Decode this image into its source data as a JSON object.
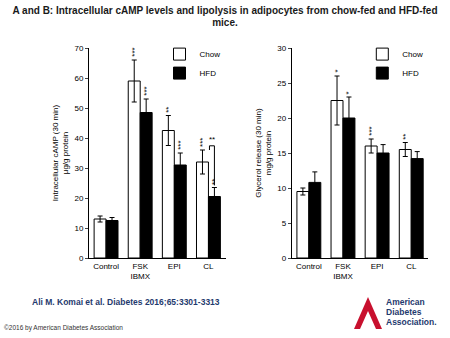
{
  "slide": {
    "title": "A and B: Intracellular cAMP levels and lipolysis in adipocytes from chow-fed and HFD-fed mice.",
    "citation": "Ali M. Komai et al. Diabetes 2016;65:3301-3313",
    "copyright": "©2016 by American Diabetes Association",
    "logo": [
      "American",
      "Diabetes",
      "Association."
    ]
  },
  "chart_data": [
    {
      "type": "bar",
      "panel": "A",
      "y_label": "Intracellular cAMP (30 min)\nμg/g protein",
      "categories": [
        "Control",
        "FSK\nIBMX",
        "EPI",
        "CL"
      ],
      "series": [
        {
          "name": "Chow",
          "color": "#ffffff",
          "values": [
            13,
            59,
            42.5,
            32
          ],
          "errors": [
            1,
            7,
            5,
            4
          ],
          "significance": [
            null,
            "***",
            "**",
            "***"
          ]
        },
        {
          "name": "HFD",
          "color": "#000000",
          "values": [
            12.5,
            48.5,
            31,
            20.5
          ],
          "errors": [
            1,
            4.5,
            4,
            3
          ],
          "significance": [
            null,
            "***",
            "***",
            "**"
          ]
        }
      ],
      "comparisons": [
        {
          "category": "CL",
          "text": "**"
        }
      ],
      "ylim": [
        0,
        70
      ],
      "yticks": [
        0,
        10,
        20,
        30,
        40,
        50,
        60,
        70
      ],
      "grid": false,
      "legend": "top right"
    },
    {
      "type": "bar",
      "panel": "B",
      "y_label": "Glycerol release (30 min)\nmg/g protein",
      "categories": [
        "Control",
        "FSK\nIBMX",
        "EPI",
        "CL"
      ],
      "series": [
        {
          "name": "Chow",
          "color": "#ffffff",
          "values": [
            9.5,
            22.5,
            16,
            15.5
          ],
          "errors": [
            0.5,
            3.5,
            1,
            1
          ],
          "significance": [
            null,
            "*",
            "***",
            "**"
          ]
        },
        {
          "name": "HFD",
          "color": "#000000",
          "values": [
            10.8,
            20,
            15,
            14.2
          ],
          "errors": [
            1.5,
            3,
            1.2,
            1
          ],
          "significance": [
            null,
            "*",
            null,
            null
          ]
        }
      ],
      "comparisons": [],
      "ylim": [
        0,
        30
      ],
      "yticks": [
        0,
        5,
        10,
        15,
        20,
        25,
        30
      ],
      "grid": false,
      "legend": "top right"
    }
  ]
}
